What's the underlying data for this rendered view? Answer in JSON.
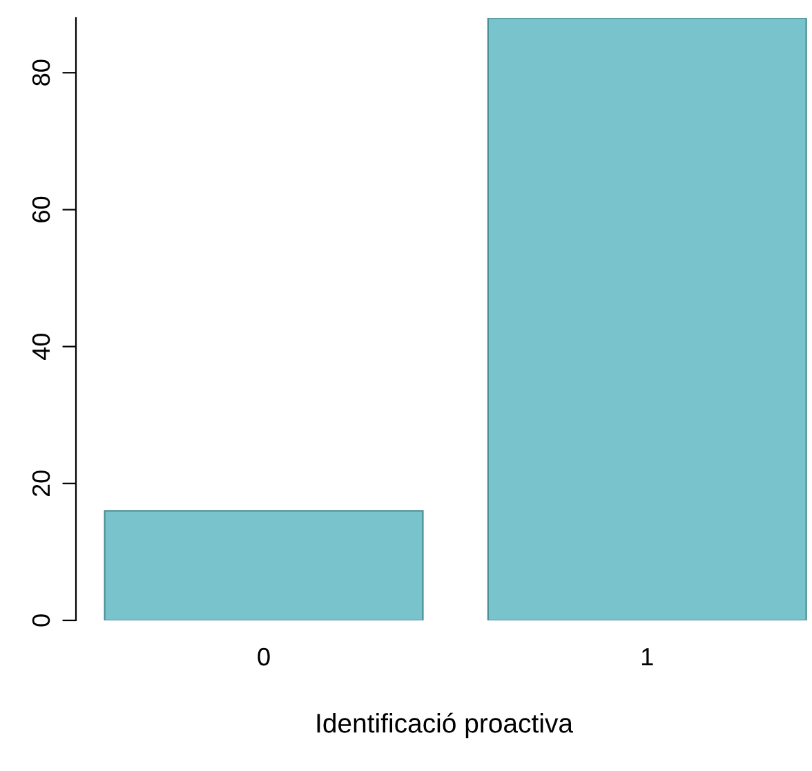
{
  "chart_data": {
    "type": "bar",
    "xlabel": "Identificació proactiva",
    "categories": [
      "0",
      "1"
    ],
    "values": [
      16,
      88
    ],
    "color": "#79c3cd",
    "ylim": [
      0,
      88
    ],
    "yticks": [
      0,
      20,
      40,
      60,
      80
    ],
    "grid": false
  }
}
